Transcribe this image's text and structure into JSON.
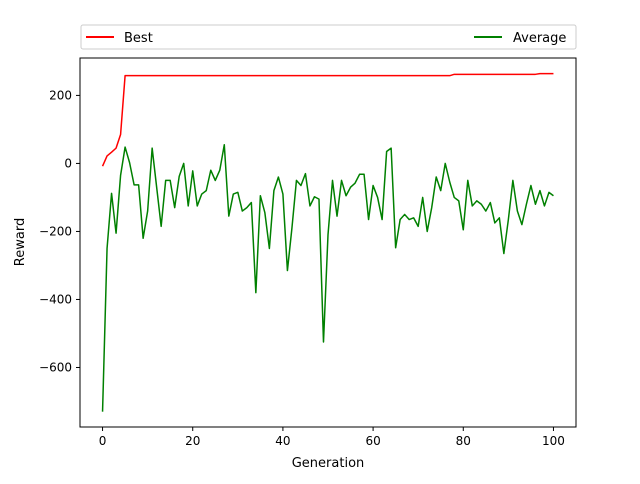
{
  "chart_data": {
    "type": "line",
    "title": "",
    "xlabel": "Generation",
    "ylabel": "Reward",
    "xlim": [
      -5,
      105
    ],
    "ylim": [
      -775,
      310
    ],
    "xticks": [
      0,
      20,
      40,
      60,
      80,
      100
    ],
    "yticks": [
      -600,
      -400,
      -200,
      0,
      200
    ],
    "grid": false,
    "legend": {
      "placement": "top, outside, two columns"
    },
    "series": [
      {
        "name": "Best",
        "color": "#ff0000",
        "x": [
          0,
          1,
          2,
          3,
          4,
          5,
          6,
          7,
          8,
          9,
          10,
          11,
          12,
          13,
          14,
          15,
          16,
          17,
          18,
          19,
          20,
          21,
          22,
          23,
          24,
          25,
          26,
          27,
          28,
          29,
          30,
          31,
          32,
          33,
          34,
          35,
          36,
          37,
          38,
          39,
          40,
          41,
          42,
          43,
          44,
          45,
          46,
          47,
          48,
          49,
          50,
          51,
          52,
          53,
          54,
          55,
          56,
          57,
          58,
          59,
          60,
          61,
          62,
          63,
          64,
          65,
          66,
          67,
          68,
          69,
          70,
          71,
          72,
          73,
          74,
          75,
          76,
          77,
          78,
          79,
          80,
          81,
          82,
          83,
          84,
          85,
          86,
          87,
          88,
          89,
          90,
          91,
          92,
          93,
          94,
          95,
          96,
          97,
          98,
          99,
          100
        ],
        "values": [
          -8,
          22,
          33,
          45,
          85,
          258,
          258,
          258,
          258,
          258,
          258,
          258,
          258,
          258,
          258,
          258,
          258,
          258,
          258,
          258,
          258,
          258,
          258,
          258,
          258,
          258,
          258,
          258,
          258,
          258,
          258,
          258,
          258,
          258,
          258,
          258,
          258,
          258,
          258,
          258,
          258,
          258,
          258,
          258,
          258,
          258,
          258,
          258,
          258,
          258,
          258,
          258,
          258,
          258,
          258,
          258,
          258,
          258,
          258,
          258,
          258,
          258,
          258,
          258,
          258,
          258,
          258,
          258,
          258,
          258,
          258,
          258,
          258,
          258,
          258,
          258,
          258,
          258,
          262,
          262,
          262,
          262,
          262,
          262,
          262,
          262,
          262,
          262,
          262,
          262,
          262,
          262,
          262,
          262,
          262,
          262,
          262,
          264,
          264,
          264,
          264
        ]
      },
      {
        "name": "Average",
        "color": "#008000",
        "x": [
          0,
          1,
          2,
          3,
          4,
          5,
          6,
          7,
          8,
          9,
          10,
          11,
          12,
          13,
          14,
          15,
          16,
          17,
          18,
          19,
          20,
          21,
          22,
          23,
          24,
          25,
          26,
          27,
          28,
          29,
          30,
          31,
          32,
          33,
          34,
          35,
          36,
          37,
          38,
          39,
          40,
          41,
          42,
          43,
          44,
          45,
          46,
          47,
          48,
          49,
          50,
          51,
          52,
          53,
          54,
          55,
          56,
          57,
          58,
          59,
          60,
          61,
          62,
          63,
          64,
          65,
          66,
          67,
          68,
          69,
          70,
          71,
          72,
          73,
          74,
          75,
          76,
          77,
          78,
          79,
          80,
          81,
          82,
          83,
          84,
          85,
          86,
          87,
          88,
          89,
          90,
          91,
          92,
          93,
          94,
          95,
          96,
          97,
          98,
          99,
          100
        ],
        "values": [
          -730,
          -250,
          -88,
          -205,
          -35,
          48,
          2,
          -63,
          -63,
          -220,
          -140,
          45,
          -70,
          -185,
          -50,
          -50,
          -130,
          -38,
          0,
          -125,
          -22,
          -125,
          -90,
          -80,
          -20,
          -50,
          -20,
          55,
          -155,
          -90,
          -85,
          -140,
          -130,
          -115,
          -380,
          -95,
          -145,
          -250,
          -80,
          -40,
          -90,
          -315,
          -190,
          -50,
          -65,
          -30,
          -125,
          -98,
          -105,
          -525,
          -210,
          -50,
          -155,
          -50,
          -95,
          -70,
          -58,
          -32,
          -32,
          -165,
          -65,
          -100,
          -165,
          35,
          45,
          -248,
          -165,
          -150,
          -165,
          -160,
          -185,
          -100,
          -200,
          -130,
          -40,
          -80,
          0,
          -55,
          -100,
          -110,
          -195,
          -50,
          -125,
          -110,
          -120,
          -140,
          -115,
          -175,
          -160,
          -265,
          -165,
          -50,
          -140,
          -180,
          -120,
          -65,
          -120,
          -80,
          -125,
          -85,
          -95
        ]
      }
    ]
  }
}
